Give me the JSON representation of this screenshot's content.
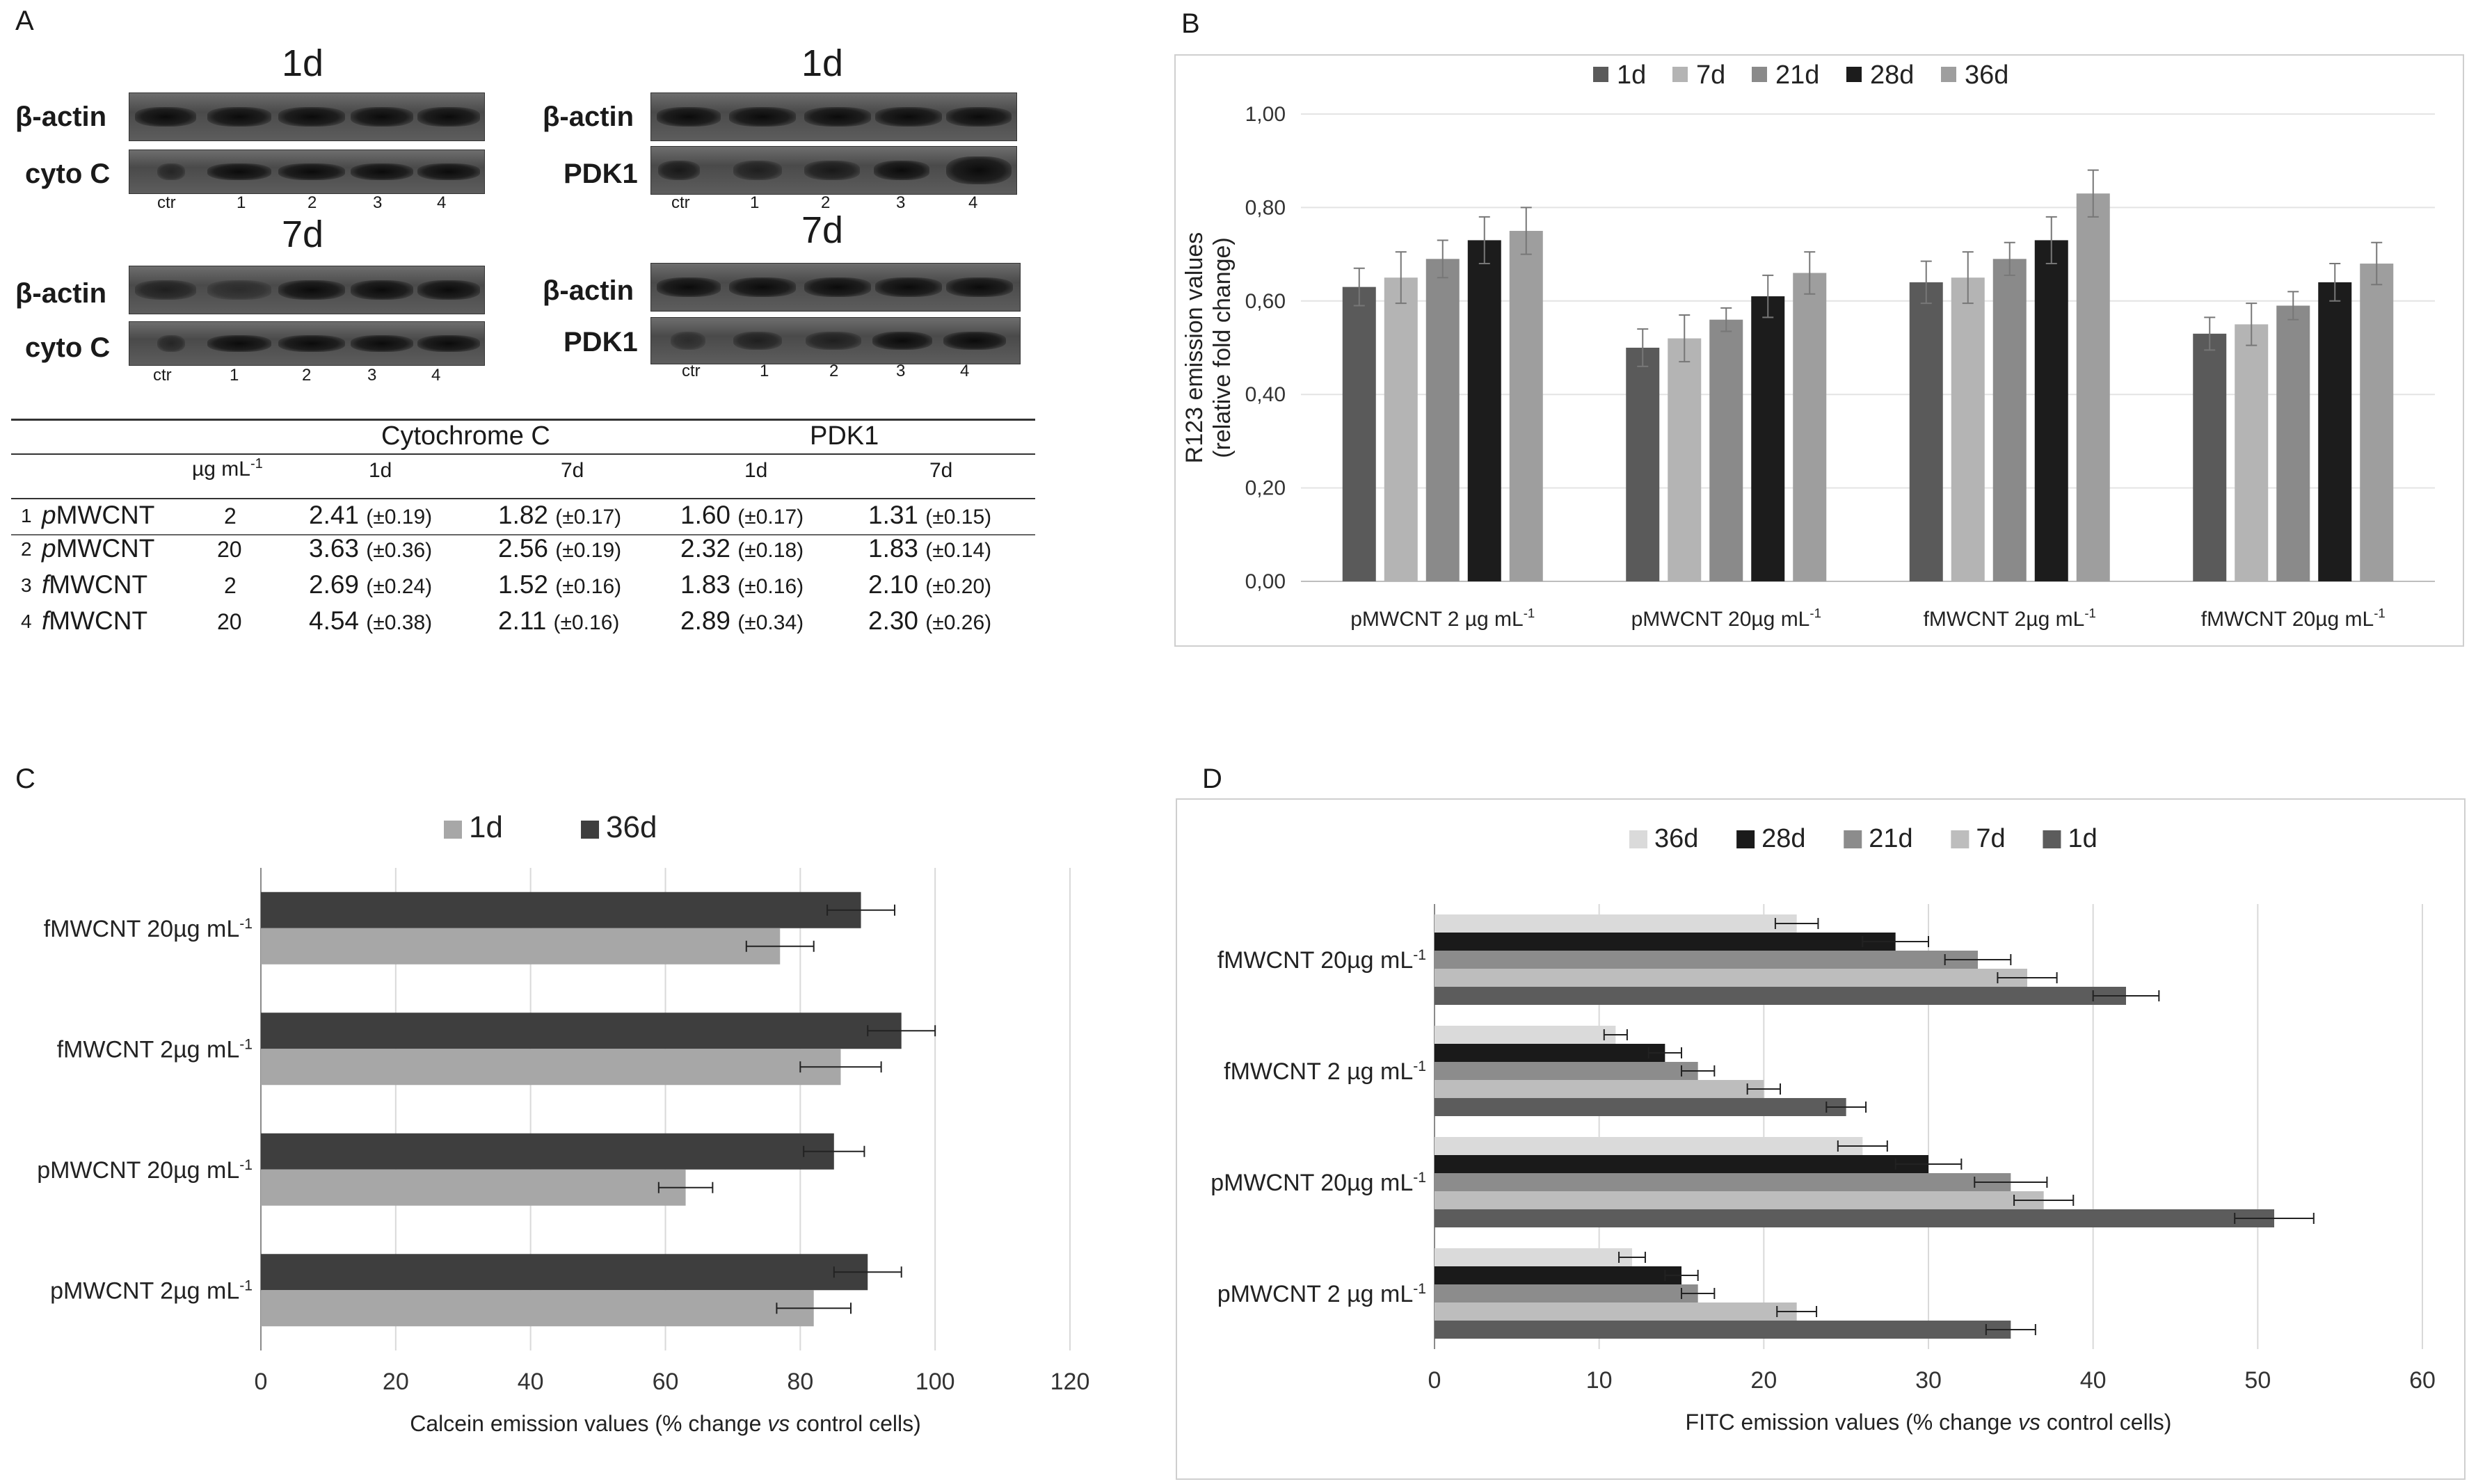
{
  "panelA": {
    "letter": "A",
    "blots": [
      {
        "title": "1d",
        "rows": [
          "β-actin",
          "cyto C"
        ],
        "lanes": [
          "ctr",
          "1",
          "2",
          "3",
          "4"
        ]
      },
      {
        "title": "1d",
        "rows": [
          "β-actin",
          "PDK1"
        ],
        "lanes": [
          "ctr",
          "1",
          "2",
          "3",
          "4"
        ]
      },
      {
        "title": "7d",
        "rows": [
          "β-actin",
          "cyto C"
        ],
        "lanes": [
          "ctr",
          "1",
          "2",
          "3",
          "4"
        ]
      },
      {
        "title": "7d",
        "rows": [
          "β-actin",
          "PDK1"
        ],
        "lanes": [
          "ctr",
          "1",
          "2",
          "3",
          "4"
        ]
      }
    ],
    "table": {
      "group1": "Cytochrome C",
      "group2": "PDK1",
      "unit": "µg mL",
      "unit_sup": "-1",
      "cols": [
        "1d",
        "7d",
        "1d",
        "7d"
      ],
      "rows": [
        {
          "idx": "1",
          "prefix": "p",
          "name": "MWCNT",
          "dose": "2",
          "vals": [
            [
              "2.41",
              "(±0.19)"
            ],
            [
              "1.82",
              "(±0.17)"
            ],
            [
              "1.60",
              "(±0.17)"
            ],
            [
              "1.31",
              "(±0.15)"
            ]
          ]
        },
        {
          "idx": "2",
          "prefix": "p",
          "name": "MWCNT",
          "dose": "20",
          "vals": [
            [
              "3.63",
              "(±0.36)"
            ],
            [
              "2.56",
              "(±0.19)"
            ],
            [
              "2.32",
              "(±0.18)"
            ],
            [
              "1.83",
              "(±0.14)"
            ]
          ]
        },
        {
          "idx": "3",
          "prefix": "f",
          "name": "MWCNT",
          "dose": "2",
          "vals": [
            [
              "2.69",
              "(±0.24)"
            ],
            [
              "1.52",
              "(±0.16)"
            ],
            [
              "1.83",
              "(±0.16)"
            ],
            [
              "2.10",
              "(±0.20)"
            ]
          ]
        },
        {
          "idx": "4",
          "prefix": "f",
          "name": "MWCNT",
          "dose": "20",
          "vals": [
            [
              "4.54",
              "(±0.38)"
            ],
            [
              "2.11",
              "(±0.16)"
            ],
            [
              "2.89",
              "(±0.34)"
            ],
            [
              "2.30",
              "(±0.26)"
            ]
          ]
        }
      ]
    }
  },
  "chart_data": [
    {
      "panel": "B",
      "type": "bar",
      "ylabel_line1": "R123 emission values",
      "ylabel_line2": "(relative fold change)",
      "ylim": [
        0,
        1.0
      ],
      "yticks": [
        "0,00",
        "0,20",
        "0,40",
        "0,60",
        "0,80",
        "1,00"
      ],
      "categories": [
        "pMWCNT 2 µg mL",
        "pMWCNT 20µg mL",
        "fMWCNT 2µg mL",
        "fMWCNT 20µg mL"
      ],
      "category_sup": "-1",
      "legend_position": "top",
      "series": [
        {
          "name": "1d",
          "color": "#5a5a5a",
          "values": [
            0.63,
            0.5,
            0.64,
            0.53
          ],
          "errors": [
            0.04,
            0.04,
            0.045,
            0.035
          ]
        },
        {
          "name": "7d",
          "color": "#b4b4b4",
          "values": [
            0.65,
            0.52,
            0.65,
            0.55
          ],
          "errors": [
            0.055,
            0.05,
            0.055,
            0.045
          ]
        },
        {
          "name": "21d",
          "color": "#8a8a8a",
          "values": [
            0.69,
            0.56,
            0.69,
            0.59
          ],
          "errors": [
            0.04,
            0.025,
            0.035,
            0.03
          ]
        },
        {
          "name": "28d",
          "color": "#1c1c1c",
          "values": [
            0.73,
            0.61,
            0.73,
            0.64
          ],
          "errors": [
            0.05,
            0.045,
            0.05,
            0.04
          ]
        },
        {
          "name": "36d",
          "color": "#9e9e9e",
          "values": [
            0.75,
            0.66,
            0.83,
            0.68
          ],
          "errors": [
            0.05,
            0.045,
            0.05,
            0.045
          ]
        }
      ]
    },
    {
      "panel": "C",
      "type": "bar",
      "orientation": "horizontal",
      "xlabel_pre": "Calcein emission values  (% change ",
      "xlabel_italic": "vs",
      "xlabel_post": " control cells)",
      "xlim": [
        0,
        120
      ],
      "xticks": [
        "0",
        "20",
        "40",
        "60",
        "80",
        "100",
        "120"
      ],
      "categories": [
        "pMWCNT 2µg mL",
        "pMWCNT 20µg mL",
        "fMWCNT 2µg mL",
        "fMWCNT 20µg mL"
      ],
      "category_sup": "-1",
      "legend_position": "top",
      "series": [
        {
          "name": "1d",
          "color": "#a7a7a7",
          "values": [
            82,
            63,
            86,
            77
          ],
          "errors": [
            5.5,
            4,
            6,
            5
          ]
        },
        {
          "name": "36d",
          "color": "#3e3e3e",
          "values": [
            90,
            85,
            95,
            89
          ],
          "errors": [
            5,
            4.5,
            5,
            5
          ]
        }
      ]
    },
    {
      "panel": "D",
      "type": "bar",
      "orientation": "horizontal",
      "xlabel_pre": "FITC emission values (% change ",
      "xlabel_italic": "vs",
      "xlabel_post": " control cells)",
      "xlim": [
        0,
        60
      ],
      "xticks": [
        "0",
        "10",
        "20",
        "30",
        "40",
        "50",
        "60"
      ],
      "categories": [
        "pMWCNT 2 µg mL",
        "pMWCNT 20µg mL",
        "fMWCNT 2 µg mL",
        "fMWCNT 20µg mL"
      ],
      "category_sup": "-1",
      "legend_position": "top",
      "series": [
        {
          "name": "36d",
          "color": "#dadada",
          "values": [
            12,
            26,
            11,
            22
          ],
          "errors": [
            0.8,
            1.5,
            0.7,
            1.3
          ]
        },
        {
          "name": "28d",
          "color": "#1a1a1a",
          "values": [
            15,
            30,
            14,
            28
          ],
          "errors": [
            1,
            2,
            1,
            2
          ]
        },
        {
          "name": "21d",
          "color": "#8c8c8c",
          "values": [
            16,
            35,
            16,
            33
          ],
          "errors": [
            1,
            2.2,
            1,
            2
          ]
        },
        {
          "name": "7d",
          "color": "#bdbdbd",
          "values": [
            22,
            37,
            20,
            36
          ],
          "errors": [
            1.2,
            1.8,
            1,
            1.8
          ]
        },
        {
          "name": "1d",
          "color": "#5c5c5c",
          "values": [
            35,
            51,
            25,
            42
          ],
          "errors": [
            1.5,
            2.4,
            1.2,
            2
          ]
        }
      ]
    }
  ],
  "labels": {
    "B": "B",
    "C": "C",
    "D": "D"
  }
}
